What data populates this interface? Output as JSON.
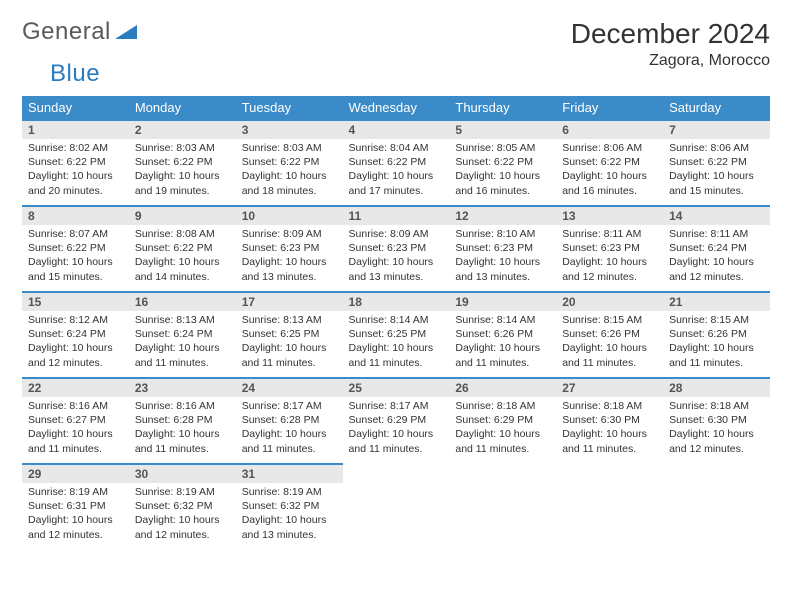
{
  "logo": {
    "text1": "General",
    "text2": "Blue"
  },
  "title": "December 2024",
  "location": "Zagora, Morocco",
  "colors": {
    "header_bg": "#3b8bc9",
    "header_text": "#ffffff",
    "daynum_bg": "#e8e8e8",
    "daynum_border": "#3b8bc9",
    "body_text": "#333333",
    "logo_gray": "#5a5a5a",
    "logo_blue": "#2b7bbf",
    "page_bg": "#ffffff"
  },
  "weekdays": [
    "Sunday",
    "Monday",
    "Tuesday",
    "Wednesday",
    "Thursday",
    "Friday",
    "Saturday"
  ],
  "days": [
    {
      "n": "1",
      "sunrise": "8:02 AM",
      "sunset": "6:22 PM",
      "daylight": "10 hours and 20 minutes."
    },
    {
      "n": "2",
      "sunrise": "8:03 AM",
      "sunset": "6:22 PM",
      "daylight": "10 hours and 19 minutes."
    },
    {
      "n": "3",
      "sunrise": "8:03 AM",
      "sunset": "6:22 PM",
      "daylight": "10 hours and 18 minutes."
    },
    {
      "n": "4",
      "sunrise": "8:04 AM",
      "sunset": "6:22 PM",
      "daylight": "10 hours and 17 minutes."
    },
    {
      "n": "5",
      "sunrise": "8:05 AM",
      "sunset": "6:22 PM",
      "daylight": "10 hours and 16 minutes."
    },
    {
      "n": "6",
      "sunrise": "8:06 AM",
      "sunset": "6:22 PM",
      "daylight": "10 hours and 16 minutes."
    },
    {
      "n": "7",
      "sunrise": "8:06 AM",
      "sunset": "6:22 PM",
      "daylight": "10 hours and 15 minutes."
    },
    {
      "n": "8",
      "sunrise": "8:07 AM",
      "sunset": "6:22 PM",
      "daylight": "10 hours and 15 minutes."
    },
    {
      "n": "9",
      "sunrise": "8:08 AM",
      "sunset": "6:22 PM",
      "daylight": "10 hours and 14 minutes."
    },
    {
      "n": "10",
      "sunrise": "8:09 AM",
      "sunset": "6:23 PM",
      "daylight": "10 hours and 13 minutes."
    },
    {
      "n": "11",
      "sunrise": "8:09 AM",
      "sunset": "6:23 PM",
      "daylight": "10 hours and 13 minutes."
    },
    {
      "n": "12",
      "sunrise": "8:10 AM",
      "sunset": "6:23 PM",
      "daylight": "10 hours and 13 minutes."
    },
    {
      "n": "13",
      "sunrise": "8:11 AM",
      "sunset": "6:23 PM",
      "daylight": "10 hours and 12 minutes."
    },
    {
      "n": "14",
      "sunrise": "8:11 AM",
      "sunset": "6:24 PM",
      "daylight": "10 hours and 12 minutes."
    },
    {
      "n": "15",
      "sunrise": "8:12 AM",
      "sunset": "6:24 PM",
      "daylight": "10 hours and 12 minutes."
    },
    {
      "n": "16",
      "sunrise": "8:13 AM",
      "sunset": "6:24 PM",
      "daylight": "10 hours and 11 minutes."
    },
    {
      "n": "17",
      "sunrise": "8:13 AM",
      "sunset": "6:25 PM",
      "daylight": "10 hours and 11 minutes."
    },
    {
      "n": "18",
      "sunrise": "8:14 AM",
      "sunset": "6:25 PM",
      "daylight": "10 hours and 11 minutes."
    },
    {
      "n": "19",
      "sunrise": "8:14 AM",
      "sunset": "6:26 PM",
      "daylight": "10 hours and 11 minutes."
    },
    {
      "n": "20",
      "sunrise": "8:15 AM",
      "sunset": "6:26 PM",
      "daylight": "10 hours and 11 minutes."
    },
    {
      "n": "21",
      "sunrise": "8:15 AM",
      "sunset": "6:26 PM",
      "daylight": "10 hours and 11 minutes."
    },
    {
      "n": "22",
      "sunrise": "8:16 AM",
      "sunset": "6:27 PM",
      "daylight": "10 hours and 11 minutes."
    },
    {
      "n": "23",
      "sunrise": "8:16 AM",
      "sunset": "6:28 PM",
      "daylight": "10 hours and 11 minutes."
    },
    {
      "n": "24",
      "sunrise": "8:17 AM",
      "sunset": "6:28 PM",
      "daylight": "10 hours and 11 minutes."
    },
    {
      "n": "25",
      "sunrise": "8:17 AM",
      "sunset": "6:29 PM",
      "daylight": "10 hours and 11 minutes."
    },
    {
      "n": "26",
      "sunrise": "8:18 AM",
      "sunset": "6:29 PM",
      "daylight": "10 hours and 11 minutes."
    },
    {
      "n": "27",
      "sunrise": "8:18 AM",
      "sunset": "6:30 PM",
      "daylight": "10 hours and 11 minutes."
    },
    {
      "n": "28",
      "sunrise": "8:18 AM",
      "sunset": "6:30 PM",
      "daylight": "10 hours and 12 minutes."
    },
    {
      "n": "29",
      "sunrise": "8:19 AM",
      "sunset": "6:31 PM",
      "daylight": "10 hours and 12 minutes."
    },
    {
      "n": "30",
      "sunrise": "8:19 AM",
      "sunset": "6:32 PM",
      "daylight": "10 hours and 12 minutes."
    },
    {
      "n": "31",
      "sunrise": "8:19 AM",
      "sunset": "6:32 PM",
      "daylight": "10 hours and 13 minutes."
    }
  ],
  "labels": {
    "sunrise": "Sunrise:",
    "sunset": "Sunset:",
    "daylight": "Daylight:"
  }
}
